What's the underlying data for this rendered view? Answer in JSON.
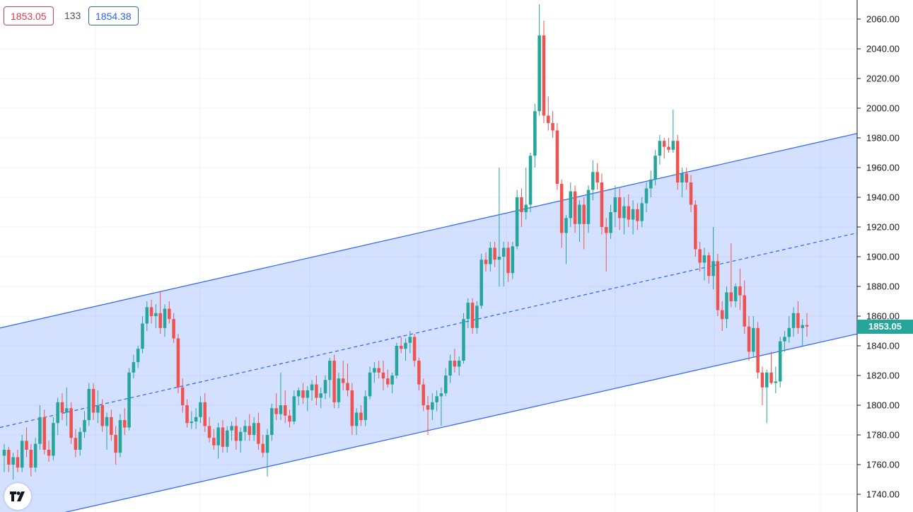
{
  "header": {
    "bid_price": "1853.05",
    "spread": "133",
    "ask_price": "1854.38"
  },
  "last_price_label": "1853.05",
  "colors": {
    "up": "#26a69a",
    "down": "#ef5350",
    "channel_line": "#2962ff",
    "channel_fill": "#2962ff",
    "grid": "#f0f3fa"
  },
  "logo": "tradingview-logo-icon",
  "chart_data": {
    "type": "candlestick",
    "title": "",
    "xlabel": "",
    "ylabel": "",
    "ylim": [
      1734,
      2070
    ],
    "grid": true,
    "y_ticks": [
      "1740.00",
      "1760.00",
      "1780.00",
      "1800.00",
      "1820.00",
      "1840.00",
      "1860.00",
      "1880.00",
      "1900.00",
      "1920.00",
      "1940.00",
      "1960.00",
      "1980.00",
      "2000.00",
      "2020.00",
      "2040.00",
      "2060.00"
    ],
    "last_price": 1853.05,
    "channel": {
      "upper": {
        "start": 1852,
        "end": 1983
      },
      "middle": {
        "start": 1785,
        "end": 1916
      },
      "lower": {
        "start": 1718,
        "end": 1848
      }
    },
    "candles": [
      {
        "o": 1766,
        "h": 1774,
        "l": 1755,
        "c": 1770
      },
      {
        "o": 1770,
        "h": 1772,
        "l": 1755,
        "c": 1760
      },
      {
        "o": 1760,
        "h": 1768,
        "l": 1750,
        "c": 1765
      },
      {
        "o": 1765,
        "h": 1770,
        "l": 1755,
        "c": 1758
      },
      {
        "o": 1758,
        "h": 1780,
        "l": 1755,
        "c": 1776
      },
      {
        "o": 1776,
        "h": 1785,
        "l": 1765,
        "c": 1770
      },
      {
        "o": 1770,
        "h": 1774,
        "l": 1752,
        "c": 1758
      },
      {
        "o": 1758,
        "h": 1778,
        "l": 1755,
        "c": 1774
      },
      {
        "o": 1774,
        "h": 1800,
        "l": 1770,
        "c": 1792
      },
      {
        "o": 1792,
        "h": 1797,
        "l": 1767,
        "c": 1770
      },
      {
        "o": 1770,
        "h": 1776,
        "l": 1762,
        "c": 1766
      },
      {
        "o": 1766,
        "h": 1792,
        "l": 1763,
        "c": 1788
      },
      {
        "o": 1788,
        "h": 1805,
        "l": 1780,
        "c": 1802
      },
      {
        "o": 1802,
        "h": 1808,
        "l": 1790,
        "c": 1795
      },
      {
        "o": 1795,
        "h": 1812,
        "l": 1786,
        "c": 1798
      },
      {
        "o": 1798,
        "h": 1802,
        "l": 1774,
        "c": 1778
      },
      {
        "o": 1778,
        "h": 1784,
        "l": 1765,
        "c": 1770
      },
      {
        "o": 1770,
        "h": 1785,
        "l": 1766,
        "c": 1782
      },
      {
        "o": 1782,
        "h": 1796,
        "l": 1778,
        "c": 1790
      },
      {
        "o": 1790,
        "h": 1815,
        "l": 1786,
        "c": 1811
      },
      {
        "o": 1811,
        "h": 1815,
        "l": 1790,
        "c": 1795
      },
      {
        "o": 1795,
        "h": 1810,
        "l": 1788,
        "c": 1800
      },
      {
        "o": 1800,
        "h": 1804,
        "l": 1782,
        "c": 1786
      },
      {
        "o": 1786,
        "h": 1795,
        "l": 1770,
        "c": 1792
      },
      {
        "o": 1792,
        "h": 1797,
        "l": 1776,
        "c": 1780
      },
      {
        "o": 1780,
        "h": 1786,
        "l": 1760,
        "c": 1768
      },
      {
        "o": 1768,
        "h": 1794,
        "l": 1765,
        "c": 1790
      },
      {
        "o": 1790,
        "h": 1798,
        "l": 1780,
        "c": 1785
      },
      {
        "o": 1785,
        "h": 1825,
        "l": 1783,
        "c": 1822
      },
      {
        "o": 1822,
        "h": 1834,
        "l": 1818,
        "c": 1829
      },
      {
        "o": 1829,
        "h": 1840,
        "l": 1825,
        "c": 1838
      },
      {
        "o": 1838,
        "h": 1860,
        "l": 1835,
        "c": 1855
      },
      {
        "o": 1855,
        "h": 1870,
        "l": 1850,
        "c": 1866
      },
      {
        "o": 1866,
        "h": 1871,
        "l": 1855,
        "c": 1860
      },
      {
        "o": 1860,
        "h": 1868,
        "l": 1852,
        "c": 1862
      },
      {
        "o": 1862,
        "h": 1877,
        "l": 1848,
        "c": 1852
      },
      {
        "o": 1852,
        "h": 1868,
        "l": 1846,
        "c": 1865
      },
      {
        "o": 1865,
        "h": 1870,
        "l": 1855,
        "c": 1858
      },
      {
        "o": 1858,
        "h": 1862,
        "l": 1842,
        "c": 1845
      },
      {
        "o": 1845,
        "h": 1848,
        "l": 1808,
        "c": 1812
      },
      {
        "o": 1812,
        "h": 1818,
        "l": 1795,
        "c": 1800
      },
      {
        "o": 1800,
        "h": 1804,
        "l": 1785,
        "c": 1788
      },
      {
        "o": 1788,
        "h": 1796,
        "l": 1784,
        "c": 1789
      },
      {
        "o": 1789,
        "h": 1798,
        "l": 1784,
        "c": 1792
      },
      {
        "o": 1792,
        "h": 1806,
        "l": 1788,
        "c": 1802
      },
      {
        "o": 1802,
        "h": 1808,
        "l": 1782,
        "c": 1786
      },
      {
        "o": 1786,
        "h": 1792,
        "l": 1775,
        "c": 1778
      },
      {
        "o": 1778,
        "h": 1784,
        "l": 1770,
        "c": 1773
      },
      {
        "o": 1773,
        "h": 1788,
        "l": 1764,
        "c": 1785
      },
      {
        "o": 1785,
        "h": 1790,
        "l": 1768,
        "c": 1772
      },
      {
        "o": 1772,
        "h": 1786,
        "l": 1768,
        "c": 1783
      },
      {
        "o": 1783,
        "h": 1789,
        "l": 1776,
        "c": 1786
      },
      {
        "o": 1786,
        "h": 1792,
        "l": 1770,
        "c": 1776
      },
      {
        "o": 1776,
        "h": 1785,
        "l": 1768,
        "c": 1782
      },
      {
        "o": 1782,
        "h": 1790,
        "l": 1776,
        "c": 1786
      },
      {
        "o": 1786,
        "h": 1794,
        "l": 1776,
        "c": 1780
      },
      {
        "o": 1780,
        "h": 1792,
        "l": 1776,
        "c": 1788
      },
      {
        "o": 1788,
        "h": 1795,
        "l": 1770,
        "c": 1774
      },
      {
        "o": 1774,
        "h": 1780,
        "l": 1765,
        "c": 1768
      },
      {
        "o": 1768,
        "h": 1784,
        "l": 1752,
        "c": 1780
      },
      {
        "o": 1780,
        "h": 1801,
        "l": 1776,
        "c": 1798
      },
      {
        "o": 1798,
        "h": 1808,
        "l": 1790,
        "c": 1794
      },
      {
        "o": 1794,
        "h": 1822,
        "l": 1790,
        "c": 1800
      },
      {
        "o": 1800,
        "h": 1810,
        "l": 1788,
        "c": 1793
      },
      {
        "o": 1793,
        "h": 1797,
        "l": 1785,
        "c": 1789
      },
      {
        "o": 1789,
        "h": 1810,
        "l": 1787,
        "c": 1806
      },
      {
        "o": 1806,
        "h": 1812,
        "l": 1800,
        "c": 1810
      },
      {
        "o": 1810,
        "h": 1815,
        "l": 1801,
        "c": 1805
      },
      {
        "o": 1805,
        "h": 1813,
        "l": 1796,
        "c": 1810
      },
      {
        "o": 1810,
        "h": 1817,
        "l": 1803,
        "c": 1814
      },
      {
        "o": 1814,
        "h": 1820,
        "l": 1800,
        "c": 1805
      },
      {
        "o": 1805,
        "h": 1812,
        "l": 1798,
        "c": 1808
      },
      {
        "o": 1808,
        "h": 1820,
        "l": 1804,
        "c": 1817
      },
      {
        "o": 1817,
        "h": 1832,
        "l": 1805,
        "c": 1830
      },
      {
        "o": 1830,
        "h": 1834,
        "l": 1798,
        "c": 1802
      },
      {
        "o": 1802,
        "h": 1822,
        "l": 1798,
        "c": 1818
      },
      {
        "o": 1818,
        "h": 1830,
        "l": 1810,
        "c": 1815
      },
      {
        "o": 1815,
        "h": 1828,
        "l": 1806,
        "c": 1810
      },
      {
        "o": 1810,
        "h": 1815,
        "l": 1780,
        "c": 1786
      },
      {
        "o": 1786,
        "h": 1798,
        "l": 1780,
        "c": 1795
      },
      {
        "o": 1795,
        "h": 1800,
        "l": 1786,
        "c": 1790
      },
      {
        "o": 1790,
        "h": 1810,
        "l": 1786,
        "c": 1806
      },
      {
        "o": 1806,
        "h": 1826,
        "l": 1804,
        "c": 1822
      },
      {
        "o": 1822,
        "h": 1829,
        "l": 1815,
        "c": 1825
      },
      {
        "o": 1825,
        "h": 1830,
        "l": 1818,
        "c": 1822
      },
      {
        "o": 1822,
        "h": 1830,
        "l": 1810,
        "c": 1818
      },
      {
        "o": 1818,
        "h": 1824,
        "l": 1812,
        "c": 1814
      },
      {
        "o": 1814,
        "h": 1822,
        "l": 1808,
        "c": 1820
      },
      {
        "o": 1820,
        "h": 1842,
        "l": 1818,
        "c": 1840
      },
      {
        "o": 1840,
        "h": 1846,
        "l": 1835,
        "c": 1838
      },
      {
        "o": 1838,
        "h": 1845,
        "l": 1830,
        "c": 1842
      },
      {
        "o": 1842,
        "h": 1850,
        "l": 1835,
        "c": 1846
      },
      {
        "o": 1846,
        "h": 1848,
        "l": 1826,
        "c": 1830
      },
      {
        "o": 1830,
        "h": 1832,
        "l": 1810,
        "c": 1814
      },
      {
        "o": 1814,
        "h": 1818,
        "l": 1796,
        "c": 1800
      },
      {
        "o": 1800,
        "h": 1806,
        "l": 1780,
        "c": 1797
      },
      {
        "o": 1797,
        "h": 1808,
        "l": 1790,
        "c": 1802
      },
      {
        "o": 1802,
        "h": 1810,
        "l": 1796,
        "c": 1806
      },
      {
        "o": 1806,
        "h": 1812,
        "l": 1786,
        "c": 1808
      },
      {
        "o": 1808,
        "h": 1825,
        "l": 1806,
        "c": 1820
      },
      {
        "o": 1820,
        "h": 1834,
        "l": 1815,
        "c": 1830
      },
      {
        "o": 1830,
        "h": 1838,
        "l": 1822,
        "c": 1826
      },
      {
        "o": 1826,
        "h": 1833,
        "l": 1820,
        "c": 1830
      },
      {
        "o": 1830,
        "h": 1862,
        "l": 1828,
        "c": 1858
      },
      {
        "o": 1858,
        "h": 1872,
        "l": 1852,
        "c": 1869
      },
      {
        "o": 1869,
        "h": 1872,
        "l": 1848,
        "c": 1852
      },
      {
        "o": 1852,
        "h": 1870,
        "l": 1848,
        "c": 1867
      },
      {
        "o": 1867,
        "h": 1902,
        "l": 1865,
        "c": 1898
      },
      {
        "o": 1898,
        "h": 1903,
        "l": 1890,
        "c": 1895
      },
      {
        "o": 1895,
        "h": 1910,
        "l": 1890,
        "c": 1906
      },
      {
        "o": 1906,
        "h": 1910,
        "l": 1893,
        "c": 1898
      },
      {
        "o": 1898,
        "h": 1960,
        "l": 1880,
        "c": 1900
      },
      {
        "o": 1900,
        "h": 1910,
        "l": 1880,
        "c": 1906
      },
      {
        "o": 1906,
        "h": 1910,
        "l": 1883,
        "c": 1889
      },
      {
        "o": 1889,
        "h": 1910,
        "l": 1885,
        "c": 1907
      },
      {
        "o": 1907,
        "h": 1945,
        "l": 1905,
        "c": 1940
      },
      {
        "o": 1940,
        "h": 1946,
        "l": 1920,
        "c": 1930
      },
      {
        "o": 1930,
        "h": 1960,
        "l": 1925,
        "c": 1935
      },
      {
        "o": 1935,
        "h": 1970,
        "l": 1930,
        "c": 1968
      },
      {
        "o": 1968,
        "h": 2003,
        "l": 1960,
        "c": 1998
      },
      {
        "o": 1998,
        "h": 2070,
        "l": 1995,
        "c": 2049
      },
      {
        "o": 2049,
        "h": 2059,
        "l": 1990,
        "c": 1995
      },
      {
        "o": 1995,
        "h": 2008,
        "l": 1985,
        "c": 1990
      },
      {
        "o": 1990,
        "h": 1998,
        "l": 1980,
        "c": 1985
      },
      {
        "o": 1985,
        "h": 1990,
        "l": 1945,
        "c": 1949
      },
      {
        "o": 1949,
        "h": 1952,
        "l": 1906,
        "c": 1916
      },
      {
        "o": 1916,
        "h": 1928,
        "l": 1895,
        "c": 1926
      },
      {
        "o": 1926,
        "h": 1950,
        "l": 1920,
        "c": 1944
      },
      {
        "o": 1944,
        "h": 1948,
        "l": 1916,
        "c": 1922
      },
      {
        "o": 1922,
        "h": 1938,
        "l": 1910,
        "c": 1935
      },
      {
        "o": 1935,
        "h": 1940,
        "l": 1905,
        "c": 1922
      },
      {
        "o": 1922,
        "h": 1948,
        "l": 1916,
        "c": 1945
      },
      {
        "o": 1945,
        "h": 1965,
        "l": 1938,
        "c": 1957
      },
      {
        "o": 1957,
        "h": 1963,
        "l": 1945,
        "c": 1950
      },
      {
        "o": 1950,
        "h": 1956,
        "l": 1915,
        "c": 1920
      },
      {
        "o": 1920,
        "h": 1926,
        "l": 1890,
        "c": 1916
      },
      {
        "o": 1916,
        "h": 1935,
        "l": 1912,
        "c": 1930
      },
      {
        "o": 1930,
        "h": 1948,
        "l": 1920,
        "c": 1940
      },
      {
        "o": 1940,
        "h": 1946,
        "l": 1918,
        "c": 1926
      },
      {
        "o": 1926,
        "h": 1940,
        "l": 1915,
        "c": 1934
      },
      {
        "o": 1934,
        "h": 1942,
        "l": 1920,
        "c": 1925
      },
      {
        "o": 1925,
        "h": 1938,
        "l": 1915,
        "c": 1932
      },
      {
        "o": 1932,
        "h": 1936,
        "l": 1918,
        "c": 1924
      },
      {
        "o": 1924,
        "h": 1940,
        "l": 1920,
        "c": 1936
      },
      {
        "o": 1936,
        "h": 1950,
        "l": 1930,
        "c": 1946
      },
      {
        "o": 1946,
        "h": 1958,
        "l": 1940,
        "c": 1952
      },
      {
        "o": 1952,
        "h": 1972,
        "l": 1948,
        "c": 1968
      },
      {
        "o": 1968,
        "h": 1982,
        "l": 1962,
        "c": 1978
      },
      {
        "o": 1978,
        "h": 1980,
        "l": 1966,
        "c": 1974
      },
      {
        "o": 1974,
        "h": 1980,
        "l": 1970,
        "c": 1972
      },
      {
        "o": 1972,
        "h": 1999,
        "l": 1970,
        "c": 1978
      },
      {
        "o": 1978,
        "h": 1982,
        "l": 1945,
        "c": 1950
      },
      {
        "o": 1950,
        "h": 1960,
        "l": 1940,
        "c": 1956
      },
      {
        "o": 1956,
        "h": 1960,
        "l": 1945,
        "c": 1950
      },
      {
        "o": 1950,
        "h": 1955,
        "l": 1930,
        "c": 1935
      },
      {
        "o": 1935,
        "h": 1938,
        "l": 1900,
        "c": 1905
      },
      {
        "o": 1905,
        "h": 1910,
        "l": 1890,
        "c": 1896
      },
      {
        "o": 1896,
        "h": 1906,
        "l": 1884,
        "c": 1901
      },
      {
        "o": 1901,
        "h": 1903,
        "l": 1882,
        "c": 1887
      },
      {
        "o": 1887,
        "h": 1920,
        "l": 1878,
        "c": 1897
      },
      {
        "o": 1897,
        "h": 1902,
        "l": 1860,
        "c": 1864
      },
      {
        "o": 1864,
        "h": 1870,
        "l": 1850,
        "c": 1858
      },
      {
        "o": 1858,
        "h": 1880,
        "l": 1852,
        "c": 1876
      },
      {
        "o": 1876,
        "h": 1909,
        "l": 1866,
        "c": 1870
      },
      {
        "o": 1870,
        "h": 1882,
        "l": 1866,
        "c": 1880
      },
      {
        "o": 1880,
        "h": 1892,
        "l": 1864,
        "c": 1874
      },
      {
        "o": 1874,
        "h": 1884,
        "l": 1848,
        "c": 1853
      },
      {
        "o": 1853,
        "h": 1860,
        "l": 1830,
        "c": 1836
      },
      {
        "o": 1836,
        "h": 1860,
        "l": 1832,
        "c": 1852
      },
      {
        "o": 1852,
        "h": 1856,
        "l": 1818,
        "c": 1822
      },
      {
        "o": 1822,
        "h": 1826,
        "l": 1800,
        "c": 1812
      },
      {
        "o": 1812,
        "h": 1824,
        "l": 1788,
        "c": 1822
      },
      {
        "o": 1822,
        "h": 1836,
        "l": 1814,
        "c": 1815
      },
      {
        "o": 1815,
        "h": 1826,
        "l": 1808,
        "c": 1816
      },
      {
        "o": 1816,
        "h": 1846,
        "l": 1812,
        "c": 1843
      },
      {
        "o": 1843,
        "h": 1850,
        "l": 1836,
        "c": 1846
      },
      {
        "o": 1846,
        "h": 1860,
        "l": 1842,
        "c": 1852
      },
      {
        "o": 1852,
        "h": 1866,
        "l": 1846,
        "c": 1862
      },
      {
        "o": 1862,
        "h": 1870,
        "l": 1848,
        "c": 1852
      },
      {
        "o": 1852,
        "h": 1858,
        "l": 1840,
        "c": 1854
      },
      {
        "o": 1854,
        "h": 1862,
        "l": 1846,
        "c": 1853
      }
    ]
  }
}
